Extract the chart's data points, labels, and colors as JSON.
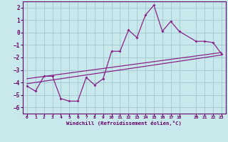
{
  "xlabel": "Windchill (Refroidissement éolien,°C)",
  "bg_color": "#c8e8ec",
  "grid_color": "#a0c8d0",
  "line_color": "#882288",
  "spine_color": "#660066",
  "xlim": [
    -0.5,
    23.5
  ],
  "ylim": [
    -6.5,
    2.5
  ],
  "yticks": [
    -6,
    -5,
    -4,
    -3,
    -2,
    -1,
    0,
    1,
    2
  ],
  "xticks": [
    0,
    1,
    2,
    3,
    4,
    5,
    6,
    7,
    8,
    9,
    10,
    11,
    12,
    13,
    14,
    15,
    16,
    17,
    18,
    20,
    21,
    22,
    23
  ],
  "series1_x": [
    0,
    1,
    2,
    3,
    4,
    5,
    6,
    7,
    8,
    9,
    10,
    11,
    12,
    13,
    14,
    15,
    16,
    17,
    18,
    20,
    21,
    22,
    23
  ],
  "series1_y": [
    -4.3,
    -4.7,
    -3.5,
    -3.5,
    -5.3,
    -5.5,
    -5.5,
    -3.6,
    -4.2,
    -3.7,
    -1.5,
    -1.5,
    0.2,
    -0.4,
    1.4,
    2.2,
    0.1,
    0.9,
    0.1,
    -0.7,
    -0.7,
    -0.8,
    -1.7
  ],
  "series2_x": [
    0,
    23
  ],
  "series2_y": [
    -4.1,
    -1.8
  ],
  "series3_x": [
    0,
    23
  ],
  "series3_y": [
    -3.7,
    -1.6
  ]
}
